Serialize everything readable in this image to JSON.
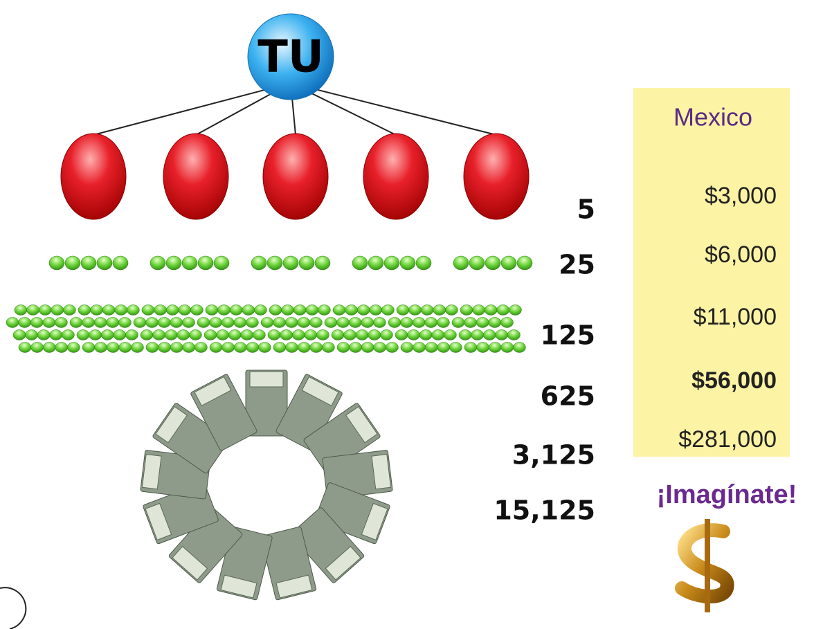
{
  "top_node": {
    "label": "TU"
  },
  "levels": [
    {
      "count": "5"
    },
    {
      "count": "25"
    },
    {
      "count": "125"
    },
    {
      "count": "625"
    },
    {
      "count": "3,125"
    },
    {
      "count": "15,125"
    }
  ],
  "earnings": {
    "header": "Mexico",
    "amounts": [
      "$3,000",
      "$6,000",
      "$11,000",
      "$56,000",
      "$281,000"
    ],
    "highlight_index": 3
  },
  "tagline": "¡Imagínate!"
}
